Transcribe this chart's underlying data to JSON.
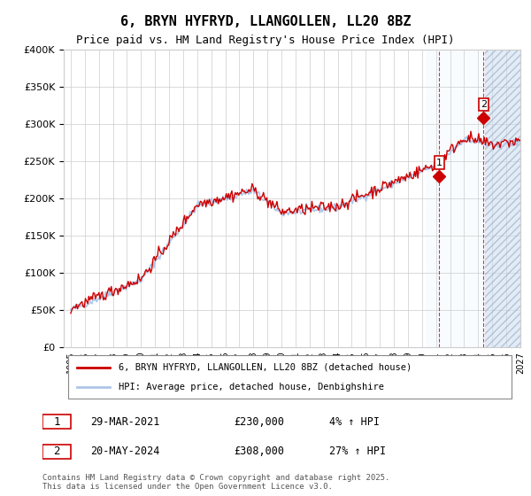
{
  "title": "6, BRYN HYFRYD, LLANGOLLEN, LL20 8BZ",
  "subtitle": "Price paid vs. HM Land Registry's House Price Index (HPI)",
  "legend_line1": "6, BRYN HYFRYD, LLANGOLLEN, LL20 8BZ (detached house)",
  "legend_line2": "HPI: Average price, detached house, Denbighshire",
  "annotation1_label": "1",
  "annotation1_date": "29-MAR-2021",
  "annotation1_price": "£230,000",
  "annotation1_hpi": "4% ↑ HPI",
  "annotation1_year": 2021.23,
  "annotation1_value": 230000,
  "annotation2_label": "2",
  "annotation2_date": "20-MAY-2024",
  "annotation2_price": "£308,000",
  "annotation2_hpi": "27% ↑ HPI",
  "annotation2_year": 2024.38,
  "annotation2_value": 308000,
  "year_start": 1995,
  "year_end": 2027,
  "ymin": 0,
  "ymax": 400000,
  "hpi_color": "#aec6e8",
  "price_color": "#cc0000",
  "background_color": "#ffffff",
  "grid_color": "#cccccc",
  "shade_color": "#ddeeff",
  "hatch_color": "#aaaacc",
  "footer": "Contains HM Land Registry data © Crown copyright and database right 2025.\nThis data is licensed under the Open Government Licence v3.0."
}
